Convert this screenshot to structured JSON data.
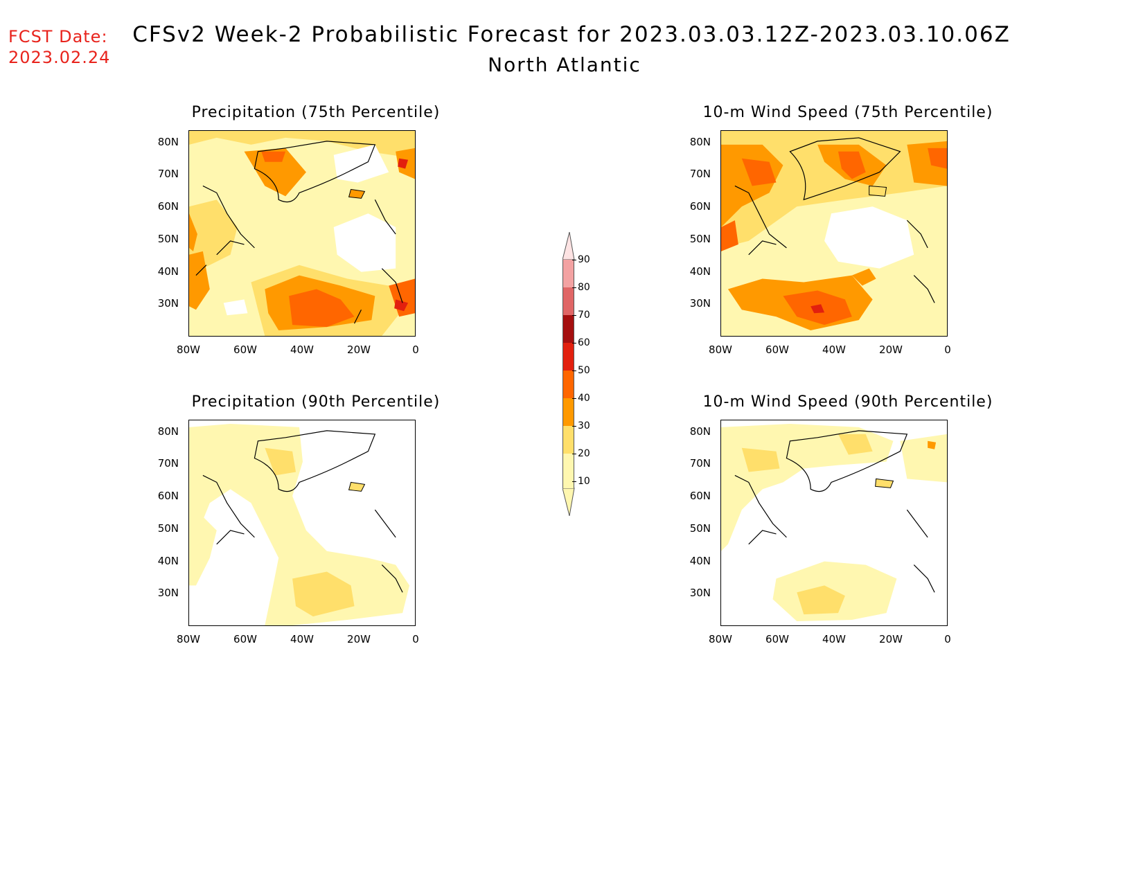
{
  "header": {
    "fcst_label": "FCST Date:",
    "fcst_date": "2023.02.24",
    "title": "CFSv2 Week-2 Probabilistic Forecast for 2023.03.03.12Z-2023.03.10.06Z",
    "subtitle": "North Atlantic"
  },
  "axes": {
    "lat_labels": [
      "80N",
      "70N",
      "60N",
      "50N",
      "40N",
      "30N"
    ],
    "lon_labels": [
      "80W",
      "60W",
      "40W",
      "20W",
      "0"
    ]
  },
  "panels": [
    {
      "title": "Precipitation (75th Percentile)",
      "level": "high"
    },
    {
      "title": "10-m Wind Speed (75th Percentile)",
      "level": "high"
    },
    {
      "title": "Precipitation (90th Percentile)",
      "level": "low"
    },
    {
      "title": "10-m Wind Speed (90th Percentile)",
      "level": "low"
    }
  ],
  "colorbar": {
    "labels": [
      "90",
      "80",
      "70",
      "60",
      "50",
      "40",
      "30",
      "20",
      "10"
    ],
    "colors": [
      "#fde3e3",
      "#f3a2a2",
      "#e06666",
      "#a50f0f",
      "#e2200e",
      "#ff6600",
      "#ff9900",
      "#ffdf6b",
      "#fff7b0"
    ]
  }
}
